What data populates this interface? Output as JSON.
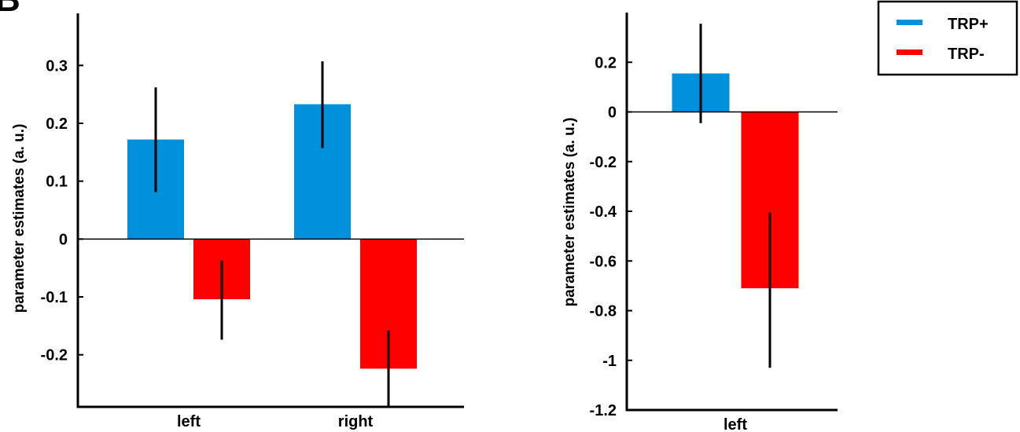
{
  "panel_letter": "B",
  "legend": {
    "items": [
      {
        "label": "TRP+",
        "color": "#0090dc"
      },
      {
        "label": "TRP-",
        "color": "#ff0000"
      }
    ]
  },
  "chart_data": [
    {
      "type": "bar",
      "title": "",
      "xlabel": "",
      "ylabel": "parameter estimates (a. u.)",
      "categories": [
        "left",
        "right"
      ],
      "ylim": [
        -0.29,
        0.39
      ],
      "yticks": [
        0.3,
        0.2,
        0.1,
        0,
        -0.1,
        -0.2
      ],
      "ytick_labels": [
        "0.3",
        "0.2",
        "0.1",
        "0",
        "-0.1",
        "-0.2"
      ],
      "zero_line": true,
      "grid": false,
      "series": [
        {
          "name": "TRP+",
          "color": "#0090dc",
          "values": [
            0.172,
            0.233
          ],
          "error_low": [
            0.081,
            0.157
          ],
          "error_high": [
            0.262,
            0.307
          ]
        },
        {
          "name": "TRP-",
          "color": "#ff0000",
          "values": [
            -0.104,
            -0.224
          ],
          "error_low": [
            -0.174,
            -0.29
          ],
          "error_high": [
            -0.037,
            -0.158
          ]
        }
      ]
    },
    {
      "type": "bar",
      "title": "",
      "xlabel": "",
      "ylabel": "parameter estimates (a. u.)",
      "categories": [
        "left"
      ],
      "ylim": [
        -1.2,
        0.4
      ],
      "yticks": [
        0.2,
        0,
        -0.2,
        -0.4,
        -0.6,
        -0.8,
        -1,
        -1.2
      ],
      "ytick_labels": [
        "0.2",
        "0",
        "-0.2",
        "-0.4",
        "-0.6",
        "-0.8",
        "-1",
        "-1.2"
      ],
      "zero_line": true,
      "grid": false,
      "legend_position": "top-right",
      "series": [
        {
          "name": "TRP+",
          "color": "#0090dc",
          "values": [
            0.155
          ],
          "error_low": [
            -0.045
          ],
          "error_high": [
            0.355
          ]
        },
        {
          "name": "TRP-",
          "color": "#ff0000",
          "values": [
            -0.71
          ],
          "error_low": [
            -1.03
          ],
          "error_high": [
            -0.405
          ]
        }
      ]
    }
  ]
}
